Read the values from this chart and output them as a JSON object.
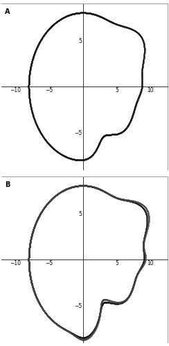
{
  "title_A": "A",
  "title_B": "B",
  "xlim": [
    -12,
    12.5
  ],
  "ylim": [
    -9,
    9
  ],
  "xticks": [
    -10,
    -5,
    5,
    10
  ],
  "yticks": [
    -5,
    5
  ],
  "bg_color": "#ffffff",
  "line_color": "#111111",
  "R": 8.0,
  "n_points": 2000,
  "label_fontsize": 7,
  "tick_fontsize": 5.5
}
